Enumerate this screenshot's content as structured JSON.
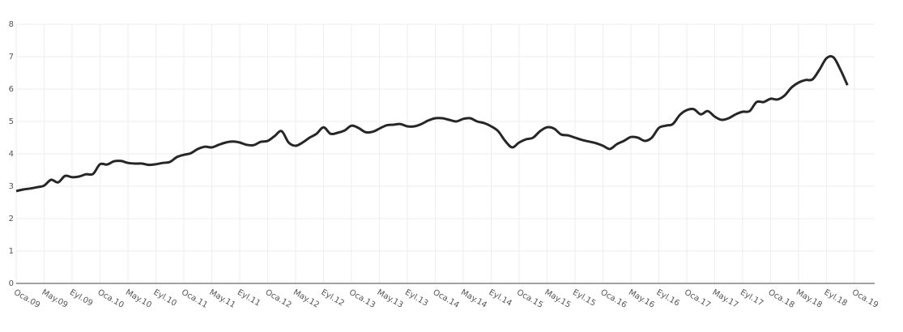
{
  "chart_data": {
    "type": "line",
    "categories": [
      "Oca.09",
      null,
      null,
      null,
      "May.09",
      null,
      null,
      null,
      "Eyl.09",
      null,
      null,
      null,
      "Oca.10",
      null,
      null,
      null,
      "May.10",
      null,
      null,
      null,
      "Eyl.10",
      null,
      null,
      null,
      "Oca.11",
      null,
      null,
      null,
      "May.11",
      null,
      null,
      null,
      "Eyl.11",
      null,
      null,
      null,
      "Oca.12",
      null,
      null,
      null,
      "May.12",
      null,
      null,
      null,
      "Eyl.12",
      null,
      null,
      null,
      "Oca.13",
      null,
      null,
      null,
      "May.13",
      null,
      null,
      null,
      "Eyl.13",
      null,
      null,
      null,
      "Oca.14",
      null,
      null,
      null,
      "May.14",
      null,
      null,
      null,
      "Eyl.14",
      null,
      null,
      null,
      "Oca.15",
      null,
      null,
      null,
      "May.15",
      null,
      null,
      null,
      "Eyl.15",
      null,
      null,
      null,
      "Oca.16",
      null,
      null,
      null,
      "May.16",
      null,
      null,
      null,
      "Eyl.16",
      null,
      null,
      null,
      "Oca.17",
      null,
      null,
      null,
      "May.17",
      null,
      null,
      null,
      "Eyl.17",
      null,
      null,
      null,
      "Oca.18",
      null,
      null,
      null,
      "May.18",
      null,
      null,
      null,
      "Eyl.18",
      null,
      null,
      null,
      "Oca.19"
    ],
    "values": [
      2.85,
      2.9,
      2.93,
      2.97,
      3.02,
      3.2,
      3.12,
      3.32,
      3.28,
      3.3,
      3.37,
      3.38,
      3.68,
      3.67,
      3.77,
      3.78,
      3.72,
      3.7,
      3.7,
      3.66,
      3.68,
      3.72,
      3.75,
      3.9,
      3.97,
      4.02,
      4.15,
      4.22,
      4.2,
      4.28,
      4.35,
      4.38,
      4.35,
      4.28,
      4.27,
      4.37,
      4.4,
      4.55,
      4.7,
      4.35,
      4.25,
      4.35,
      4.5,
      4.62,
      4.82,
      4.62,
      4.65,
      4.72,
      4.87,
      4.8,
      4.67,
      4.68,
      4.78,
      4.88,
      4.9,
      4.92,
      4.85,
      4.85,
      4.92,
      5.03,
      5.1,
      5.1,
      5.05,
      5.0,
      5.08,
      5.1,
      5.0,
      4.95,
      4.85,
      4.7,
      4.4,
      4.2,
      4.35,
      4.45,
      4.5,
      4.7,
      4.82,
      4.78,
      4.6,
      4.57,
      4.5,
      4.43,
      4.38,
      4.33,
      4.25,
      4.15,
      4.3,
      4.4,
      4.52,
      4.5,
      4.4,
      4.5,
      4.8,
      4.87,
      4.92,
      5.2,
      5.35,
      5.38,
      5.22,
      5.32,
      5.15,
      5.05,
      5.1,
      5.22,
      5.3,
      5.32,
      5.6,
      5.6,
      5.7,
      5.68,
      5.8,
      6.05,
      6.2,
      6.28,
      6.3,
      6.6,
      6.95,
      6.98,
      6.6,
      6.12,
      null
    ],
    "color": "#262626",
    "ylim": [
      0,
      8
    ],
    "yticks": [
      0,
      1,
      2,
      3,
      4,
      5,
      6,
      7,
      8
    ],
    "grid": true
  }
}
